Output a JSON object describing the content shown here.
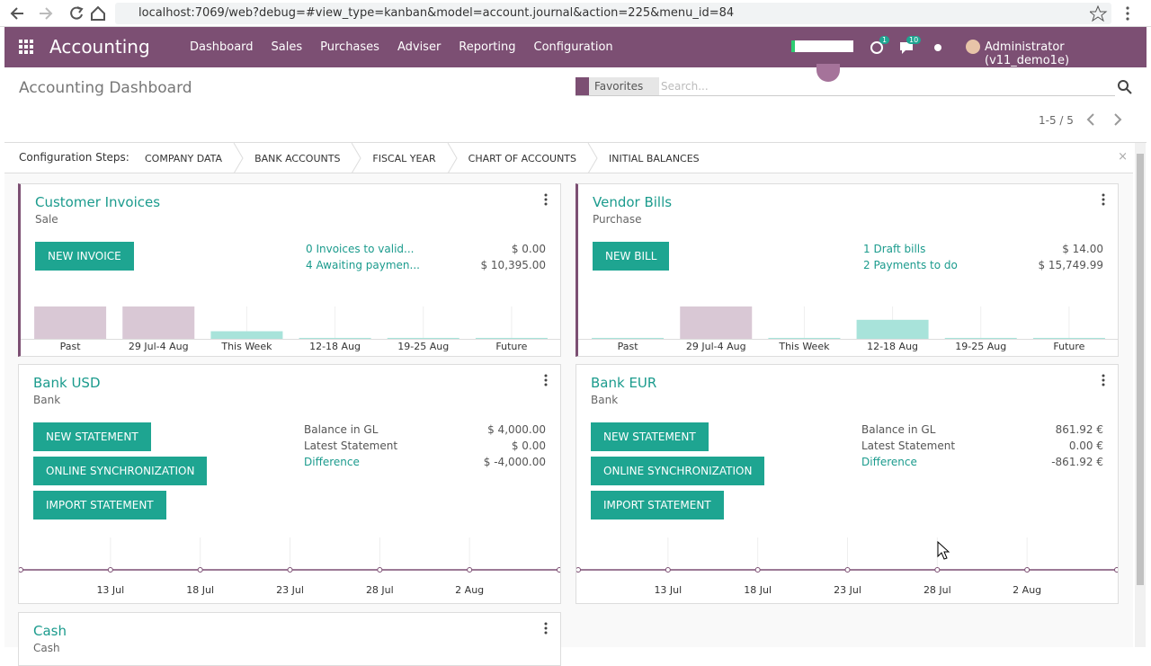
{
  "browser": {
    "url": "localhost:7069/web?debug=#view_type=kanban&model=account.journal&action=225&menu_id=84"
  },
  "nav": {
    "app": "Accounting",
    "menu": [
      "Dashboard",
      "Sales",
      "Purchases",
      "Adviser",
      "Reporting",
      "Configuration"
    ],
    "activity_badge": "1",
    "message_badge": "10",
    "user": "Administrator (v11_demo1e)"
  },
  "control": {
    "title": "Accounting Dashboard",
    "facet": "Favorites",
    "search_placeholder": "Search...",
    "pager": "1-5 / 5"
  },
  "config": {
    "label": "Configuration Steps:",
    "steps": [
      "COMPANY DATA",
      "BANK ACCOUNTS",
      "FISCAL YEAR",
      "CHART OF ACCOUNTS",
      "INITIAL BALANCES"
    ]
  },
  "cards": [
    {
      "title": "Customer Invoices",
      "subtitle": "Sale",
      "accent": true,
      "buttons": [
        "NEW INVOICE"
      ],
      "rows": [
        {
          "label": "0 Invoices to valid...",
          "value": "$ 0.00",
          "link": true
        },
        {
          "label": "4 Awaiting paymen...",
          "value": "$ 10,395.00",
          "link": true
        }
      ],
      "graph": {
        "type": "bar",
        "categories": [
          "Past",
          "29 Jul-4 Aug",
          "This Week",
          "12-18 Aug",
          "19-25 Aug",
          "Future"
        ],
        "values": [
          34,
          34,
          8,
          1,
          1,
          1
        ],
        "colors": [
          "#d9c8d5",
          "#d9c8d5",
          "#a8e3da",
          "#a8e3da",
          "#a8e3da",
          "#a8e3da"
        ]
      }
    },
    {
      "title": "Vendor Bills",
      "subtitle": "Purchase",
      "accent": true,
      "buttons": [
        "NEW BILL"
      ],
      "rows": [
        {
          "label": "1 Draft bills",
          "value": "$ 14.00",
          "link": true
        },
        {
          "label": "2 Payments to do",
          "value": "$ 15,749.99",
          "link": true
        }
      ],
      "graph": {
        "type": "bar",
        "categories": [
          "Past",
          "29 Jul-4 Aug",
          "This Week",
          "12-18 Aug",
          "19-25 Aug",
          "Future"
        ],
        "values": [
          1,
          34,
          1,
          20,
          1,
          1
        ],
        "colors": [
          "#a8e3da",
          "#d9c8d5",
          "#a8e3da",
          "#a8e3da",
          "#a8e3da",
          "#a8e3da"
        ]
      }
    },
    {
      "title": "Bank USD",
      "subtitle": "Bank",
      "accent": false,
      "buttons": [
        "NEW STATEMENT",
        "ONLINE SYNCHRONIZATION",
        "IMPORT STATEMENT"
      ],
      "rows": [
        {
          "label": "Balance in GL",
          "value": "$ 4,000.00",
          "link": false
        },
        {
          "label": "Latest Statement",
          "value": "$ 0.00",
          "link": false
        },
        {
          "label": "Difference",
          "value": "$ -4,000.00",
          "link": true
        }
      ],
      "graph": {
        "type": "line",
        "categories": [
          null,
          "13 Jul",
          "18 Jul",
          "23 Jul",
          "28 Jul",
          "2 Aug",
          null
        ],
        "values": [
          0,
          0,
          0,
          0,
          0,
          0,
          0
        ],
        "color": "#7c4f73"
      }
    },
    {
      "title": "Bank EUR",
      "subtitle": "Bank",
      "accent": false,
      "buttons": [
        "NEW STATEMENT",
        "ONLINE SYNCHRONIZATION",
        "IMPORT STATEMENT"
      ],
      "rows": [
        {
          "label": "Balance in GL",
          "value": "861.92 €",
          "link": false
        },
        {
          "label": "Latest Statement",
          "value": "0.00 €",
          "link": false
        },
        {
          "label": "Difference",
          "value": "-861.92 €",
          "link": true
        }
      ],
      "graph": {
        "type": "line",
        "categories": [
          null,
          "13 Jul",
          "18 Jul",
          "23 Jul",
          "28 Jul",
          "2 Aug",
          null
        ],
        "values": [
          0,
          0,
          0,
          0,
          0,
          0,
          0
        ],
        "color": "#7c4f73"
      }
    },
    {
      "title": "Cash",
      "subtitle": "Cash",
      "accent": false,
      "buttons": [],
      "rows": []
    }
  ]
}
